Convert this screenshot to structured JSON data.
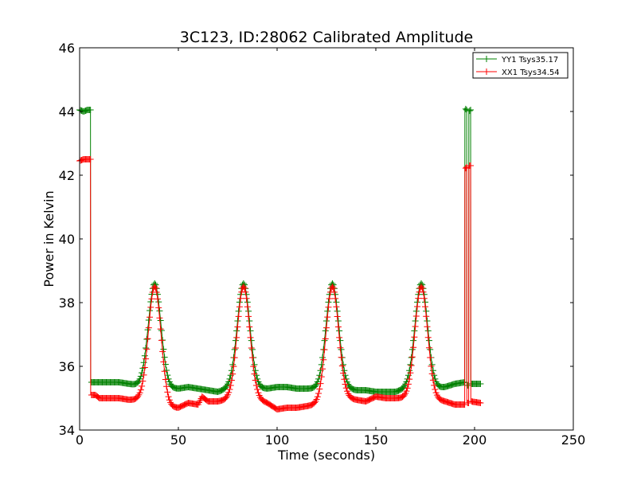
{
  "chart_data": {
    "type": "line",
    "title": "3C123, ID:28062 Calibrated Amplitude",
    "xlabel": "Time (seconds)",
    "ylabel": "Power in Kelvin",
    "xlim": [
      0,
      250
    ],
    "ylim": [
      34,
      46
    ],
    "xticks": [
      0,
      50,
      100,
      150,
      200,
      250
    ],
    "yticks": [
      34,
      36,
      38,
      40,
      42,
      44,
      46
    ],
    "grid": false,
    "legend_position": "top-right",
    "marker": "+",
    "series": [
      {
        "name": "YY1 Tsys35.17",
        "color": "#008000",
        "baseline": [
          [
            0,
            44.05
          ],
          [
            2,
            44.0
          ],
          [
            4,
            44.05
          ],
          [
            5.5,
            44.05
          ],
          [
            5.6,
            35.5
          ],
          [
            10,
            35.5
          ],
          [
            20,
            35.5
          ],
          [
            25,
            35.45
          ],
          [
            30,
            35.4
          ],
          [
            45,
            35.3
          ],
          [
            50,
            35.3
          ],
          [
            55,
            35.35
          ],
          [
            60,
            35.3
          ],
          [
            65,
            35.25
          ],
          [
            70,
            35.2
          ],
          [
            75,
            35.3
          ],
          [
            90,
            35.3
          ],
          [
            95,
            35.3
          ],
          [
            100,
            35.35
          ],
          [
            105,
            35.35
          ],
          [
            110,
            35.3
          ],
          [
            115,
            35.3
          ],
          [
            120,
            35.3
          ],
          [
            135,
            35.3
          ],
          [
            140,
            35.25
          ],
          [
            145,
            35.25
          ],
          [
            150,
            35.2
          ],
          [
            155,
            35.2
          ],
          [
            160,
            35.2
          ],
          [
            165,
            35.3
          ],
          [
            180,
            35.3
          ],
          [
            185,
            35.35
          ],
          [
            190,
            35.45
          ],
          [
            195,
            35.5
          ],
          [
            195.1,
            44.1
          ],
          [
            196,
            44.05
          ],
          [
            196.1,
            35.4
          ],
          [
            197,
            35.4
          ],
          [
            197.1,
            44.0
          ],
          [
            198,
            44.05
          ],
          [
            198.1,
            35.45
          ],
          [
            203,
            35.45
          ]
        ],
        "peaks": [
          {
            "center": 38,
            "height": 38.6
          },
          {
            "center": 83,
            "height": 38.6
          },
          {
            "center": 128,
            "height": 38.6
          },
          {
            "center": 173,
            "height": 38.6
          }
        ]
      },
      {
        "name": "XX1 Tsys34.54",
        "color": "#ff0000",
        "baseline": [
          [
            0,
            42.45
          ],
          [
            2,
            42.5
          ],
          [
            4,
            42.5
          ],
          [
            5.5,
            42.5
          ],
          [
            5.6,
            35.1
          ],
          [
            8,
            35.1
          ],
          [
            10,
            35.0
          ],
          [
            20,
            35.0
          ],
          [
            25,
            34.95
          ],
          [
            30,
            34.95
          ],
          [
            45,
            34.7
          ],
          [
            50,
            34.7
          ],
          [
            55,
            34.85
          ],
          [
            60,
            34.8
          ],
          [
            62,
            35.05
          ],
          [
            65,
            34.9
          ],
          [
            70,
            34.9
          ],
          [
            75,
            34.95
          ],
          [
            90,
            34.95
          ],
          [
            95,
            34.85
          ],
          [
            100,
            34.65
          ],
          [
            105,
            34.7
          ],
          [
            110,
            34.7
          ],
          [
            115,
            34.75
          ],
          [
            120,
            34.8
          ],
          [
            135,
            35.0
          ],
          [
            140,
            34.95
          ],
          [
            145,
            34.9
          ],
          [
            150,
            35.05
          ],
          [
            155,
            35.0
          ],
          [
            160,
            35.0
          ],
          [
            165,
            35.0
          ],
          [
            180,
            34.95
          ],
          [
            185,
            34.9
          ],
          [
            190,
            34.8
          ],
          [
            195,
            34.8
          ],
          [
            195.1,
            42.2
          ],
          [
            196,
            42.25
          ],
          [
            196.1,
            34.85
          ],
          [
            197,
            34.85
          ],
          [
            197.1,
            42.3
          ],
          [
            198,
            42.3
          ],
          [
            198.1,
            34.9
          ],
          [
            203,
            34.85
          ]
        ],
        "peaks": [
          {
            "center": 38,
            "height": 38.5
          },
          {
            "center": 83,
            "height": 38.5
          },
          {
            "center": 128,
            "height": 38.5
          },
          {
            "center": 173,
            "height": 38.5
          }
        ]
      }
    ]
  }
}
